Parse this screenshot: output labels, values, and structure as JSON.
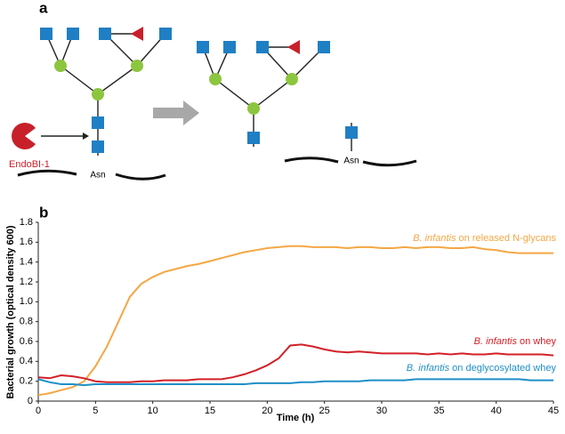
{
  "figure_a": {
    "panel_label": "a",
    "enzyme": "EndoBI-1",
    "left_site": "Asn",
    "right_site": "Asn"
  },
  "chart_data": {
    "type": "line",
    "panel_label": "b",
    "xlabel": "Time (h)",
    "ylabel": "Bacterial growth (optical density 600)",
    "x": [
      0,
      1,
      2,
      3,
      4,
      5,
      6,
      7,
      8,
      9,
      10,
      11,
      12,
      13,
      14,
      15,
      16,
      17,
      18,
      19,
      20,
      21,
      22,
      23,
      24,
      25,
      26,
      27,
      28,
      29,
      30,
      31,
      32,
      33,
      34,
      35,
      36,
      37,
      38,
      39,
      40,
      41,
      42,
      43,
      44,
      45
    ],
    "series": [
      {
        "name": "B. infantis on released N-glycans",
        "color": "#f4a745",
        "values": [
          0.06,
          0.08,
          0.11,
          0.14,
          0.2,
          0.35,
          0.55,
          0.8,
          1.05,
          1.18,
          1.25,
          1.3,
          1.33,
          1.36,
          1.38,
          1.41,
          1.44,
          1.47,
          1.5,
          1.52,
          1.54,
          1.55,
          1.56,
          1.56,
          1.55,
          1.55,
          1.55,
          1.54,
          1.55,
          1.55,
          1.54,
          1.54,
          1.55,
          1.54,
          1.55,
          1.55,
          1.54,
          1.54,
          1.55,
          1.53,
          1.52,
          1.5,
          1.49,
          1.49,
          1.49,
          1.49
        ]
      },
      {
        "name": "B. infantis on whey",
        "color": "#d32027",
        "values": [
          0.24,
          0.23,
          0.26,
          0.25,
          0.23,
          0.2,
          0.19,
          0.19,
          0.19,
          0.2,
          0.2,
          0.21,
          0.21,
          0.21,
          0.22,
          0.22,
          0.22,
          0.24,
          0.27,
          0.31,
          0.36,
          0.43,
          0.56,
          0.57,
          0.55,
          0.52,
          0.5,
          0.49,
          0.5,
          0.49,
          0.48,
          0.48,
          0.48,
          0.48,
          0.47,
          0.48,
          0.47,
          0.48,
          0.47,
          0.47,
          0.48,
          0.47,
          0.47,
          0.47,
          0.47,
          0.46
        ]
      },
      {
        "name": "B. infantis on deglycosylated whey",
        "color": "#1f8fc8",
        "values": [
          0.22,
          0.19,
          0.17,
          0.17,
          0.16,
          0.17,
          0.17,
          0.17,
          0.17,
          0.17,
          0.17,
          0.17,
          0.17,
          0.17,
          0.17,
          0.17,
          0.17,
          0.17,
          0.17,
          0.18,
          0.18,
          0.18,
          0.18,
          0.19,
          0.19,
          0.2,
          0.2,
          0.2,
          0.2,
          0.21,
          0.21,
          0.21,
          0.21,
          0.22,
          0.22,
          0.22,
          0.22,
          0.22,
          0.22,
          0.22,
          0.22,
          0.22,
          0.22,
          0.21,
          0.21,
          0.21
        ]
      }
    ],
    "xlim": [
      0,
      45
    ],
    "xticks": [
      0,
      5,
      10,
      15,
      20,
      25,
      30,
      35,
      40,
      45
    ],
    "ylim": [
      0,
      1.8
    ],
    "yticks": [
      0,
      0.2,
      0.4,
      0.6,
      0.8,
      {
        "value": 1,
        "label": "1.0"
      },
      1.2,
      1.4,
      1.6,
      1.8
    ]
  }
}
